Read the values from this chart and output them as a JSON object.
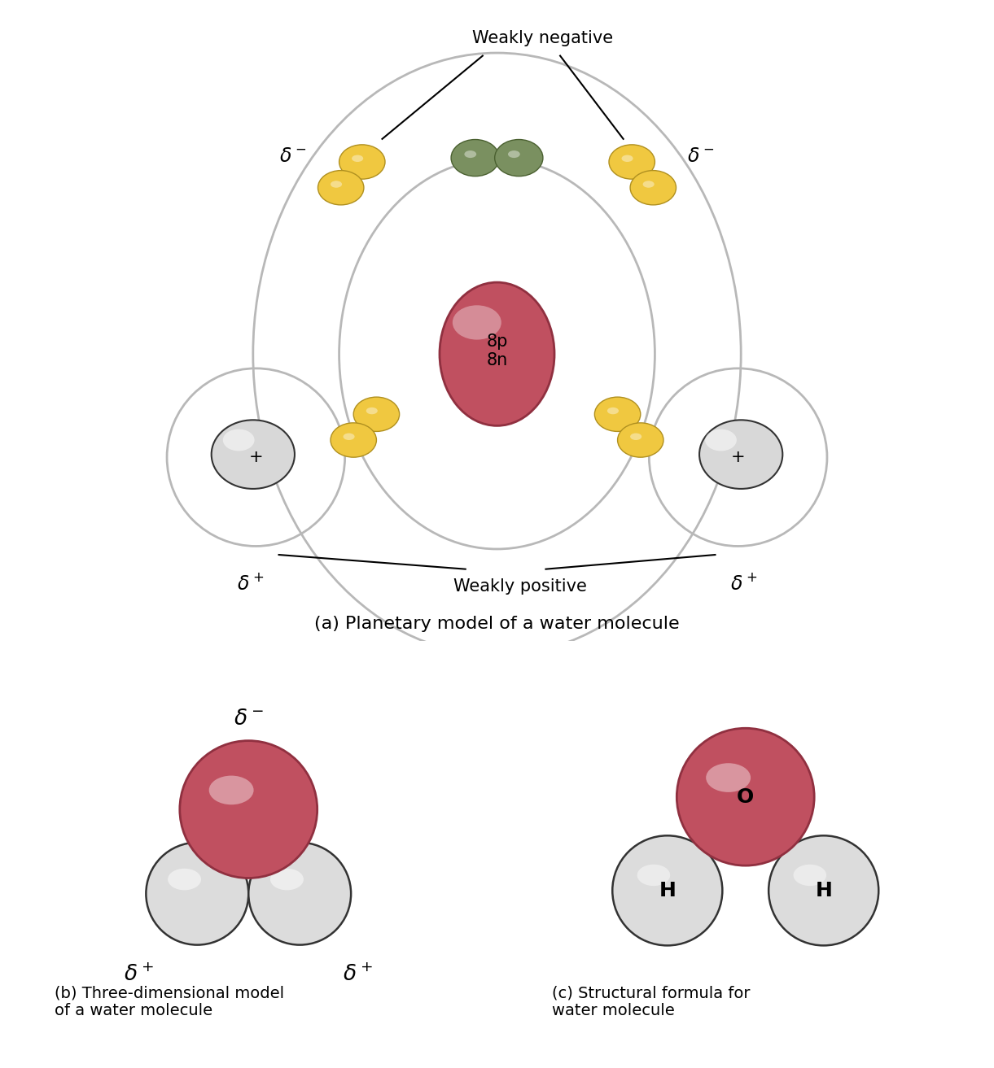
{
  "bg_color": "#ffffff",
  "oxygen_color_light": "#d06070",
  "oxygen_color_mid": "#c05060",
  "oxygen_dark": "#903040",
  "hydrogen_color": "#e0e0e0",
  "hydrogen_dark": "#606060",
  "electron_yellow": "#f0c840",
  "electron_yellow_dark": "#b09020",
  "electron_green": "#7a9060",
  "electron_green_dark": "#4a6030",
  "orbit_color": "#b8b8b8",
  "nucleus_label": "8p\n8n",
  "weakly_negative": "Weakly negative",
  "weakly_positive": "Weakly positive",
  "caption_a": "(a) Planetary model of a water molecule",
  "caption_b": "(b) Three-dimensional model\nof a water molecule",
  "caption_c": "(c) Structural formula for\nwater molecule",
  "plus_label": "+"
}
